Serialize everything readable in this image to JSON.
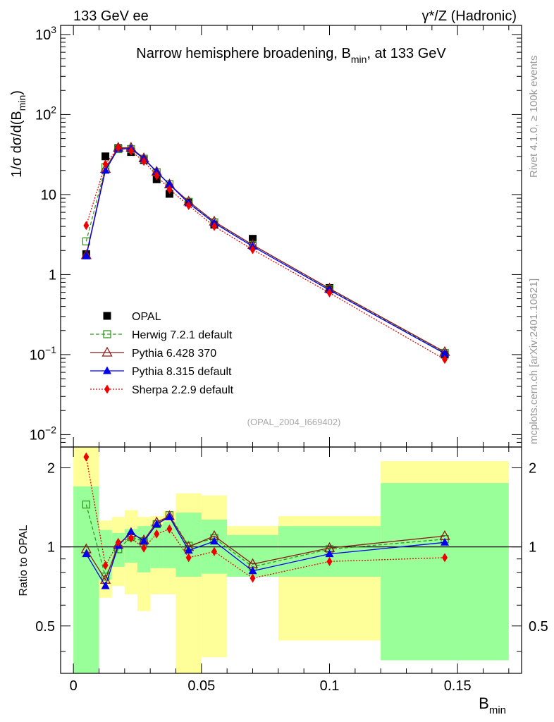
{
  "chart_data": [
    {
      "type": "line",
      "panel": "main",
      "header_left": "133 GeV ee",
      "header_right": "γ*/Z (Hadronic)",
      "title_main": "Narrow hemisphere broadening, B",
      "title_sub": "min",
      "title_tail": ", at 133 GeV",
      "ylabel_prefix": "1/σ  dσ/d(B",
      "ylabel_sub": "min",
      "ylabel_suffix": ")",
      "yscale": "log",
      "ylim": [
        0.007,
        1300
      ],
      "xlim": [
        -0.005,
        0.175
      ],
      "yticks": [
        {
          "value": 1000,
          "base": "10",
          "exp": "3"
        },
        {
          "value": 100,
          "base": "10",
          "exp": "2"
        },
        {
          "value": 10,
          "base": "10",
          "exp": ""
        },
        {
          "value": 1,
          "base": "1",
          "exp": ""
        },
        {
          "value": 0.1,
          "base": "10",
          "exp": "−1"
        },
        {
          "value": 0.01,
          "base": "10",
          "exp": "−2"
        }
      ],
      "watermark": "(OPAL_2004_I669402)",
      "x": [
        0.005,
        0.0125,
        0.0175,
        0.0225,
        0.0275,
        0.0325,
        0.0375,
        0.045,
        0.055,
        0.07,
        0.1,
        0.145
      ],
      "series": [
        {
          "name": "OPAL",
          "style": "data",
          "marker": "square-filled",
          "color": "#000000",
          "values": [
            1.8,
            30,
            38,
            34,
            27,
            15.5,
            10.2,
            8,
            4.2,
            2.8,
            0.68,
            0.1
          ]
        },
        {
          "name": "Herwig 7.2.1 default",
          "style": "dashed",
          "marker": "square-open",
          "color": "#339922",
          "values": [
            2.6,
            22,
            37,
            37,
            28,
            19,
            13.5,
            8.1,
            4.5,
            2.35,
            0.66,
            0.105
          ]
        },
        {
          "name": "Pythia 6.428 370",
          "style": "solid",
          "marker": "triangle-open",
          "color": "#8b1a1a",
          "values": [
            1.75,
            21,
            38.5,
            38.5,
            28.5,
            19.3,
            13.4,
            8.2,
            4.6,
            2.35,
            0.67,
            0.108
          ]
        },
        {
          "name": "Pythia 8.315 default",
          "style": "solid",
          "marker": "triangle-filled",
          "color": "#0000ee",
          "values": [
            1.7,
            20,
            37.5,
            37.5,
            28,
            19.3,
            13.4,
            7.8,
            4.4,
            2.25,
            0.64,
            0.103
          ]
        },
        {
          "name": "Sherpa 2.2.9 default",
          "style": "dotted",
          "marker": "diamond-filled",
          "color": "#ee0000",
          "values": [
            4.1,
            24,
            38.5,
            35,
            26,
            17.3,
            11.6,
            7.3,
            4,
            2.05,
            0.59,
            0.087
          ]
        }
      ]
    },
    {
      "type": "line",
      "panel": "ratio",
      "ylabel": "Ratio to OPAL",
      "xlabel": "B",
      "xlabel_sub": "min",
      "yscale": "log",
      "ylim": [
        0.33,
        2.4
      ],
      "ytick_labels": [
        "2",
        "1",
        "0.5"
      ],
      "ytick_values": [
        2,
        1,
        0.5
      ],
      "xtick_labels": [
        "0",
        "0.05",
        "0.1",
        "0.15"
      ],
      "xtick_values": [
        0,
        0.05,
        0.1,
        0.15
      ],
      "uncertainty_bins": [
        {
          "x0": 0.0,
          "x1": 0.01,
          "inner": [
            0.33,
            1.7
          ],
          "outer": [
            0.33,
            2.4
          ]
        },
        {
          "x0": 0.01,
          "x1": 0.015,
          "inner": [
            0.75,
            1.16
          ],
          "outer": [
            0.64,
            1.26
          ]
        },
        {
          "x0": 0.015,
          "x1": 0.02,
          "inner": [
            0.84,
            1.13
          ],
          "outer": [
            0.71,
            1.3
          ]
        },
        {
          "x0": 0.02,
          "x1": 0.025,
          "inner": [
            0.87,
            1.17
          ],
          "outer": [
            0.66,
            1.38
          ]
        },
        {
          "x0": 0.025,
          "x1": 0.03,
          "inner": [
            0.8,
            1.2
          ],
          "outer": [
            0.57,
            1.3
          ]
        },
        {
          "x0": 0.03,
          "x1": 0.035,
          "inner": [
            0.83,
            1.22
          ],
          "outer": [
            0.66,
            1.31
          ]
        },
        {
          "x0": 0.035,
          "x1": 0.04,
          "inner": [
            0.83,
            1.25
          ],
          "outer": [
            0.66,
            1.37
          ]
        },
        {
          "x0": 0.04,
          "x1": 0.05,
          "inner": [
            0.77,
            1.35
          ],
          "outer": [
            0.33,
            1.6
          ]
        },
        {
          "x0": 0.05,
          "x1": 0.06,
          "inner": [
            0.79,
            1.27
          ],
          "outer": [
            0.38,
            1.57
          ]
        },
        {
          "x0": 0.06,
          "x1": 0.08,
          "inner": [
            0.77,
            1.11
          ],
          "outer": [
            0.77,
            1.2
          ]
        },
        {
          "x0": 0.08,
          "x1": 0.12,
          "inner": [
            0.77,
            1.2
          ],
          "outer": [
            0.44,
            1.31
          ]
        },
        {
          "x0": 0.12,
          "x1": 0.17,
          "inner": [
            0.37,
            1.75
          ],
          "outer": [
            0.37,
            2.12
          ]
        }
      ],
      "series": [
        {
          "name": "Herwig 7.2.1 default",
          "values": [
            1.45,
            0.77,
            0.98,
            1.09,
            1.05,
            1.22,
            1.32,
            1.01,
            1.08,
            0.84,
            0.98,
            1.07
          ]
        },
        {
          "name": "Pythia 6.428 370",
          "values": [
            0.98,
            0.75,
            1.02,
            1.13,
            1.06,
            1.24,
            1.31,
            1.0,
            1.1,
            0.86,
            0.99,
            1.1
          ]
        },
        {
          "name": "Pythia 8.315 default",
          "values": [
            0.94,
            0.71,
            1.01,
            1.14,
            1.05,
            1.22,
            1.3,
            0.97,
            1.05,
            0.81,
            0.94,
            1.04
          ]
        },
        {
          "name": "Sherpa 2.2.9 default",
          "values": [
            2.2,
            0.85,
            1.04,
            1.08,
            0.99,
            1.12,
            1.17,
            0.91,
            0.96,
            0.76,
            0.88,
            0.91
          ]
        }
      ]
    }
  ],
  "side_label_top": "Rivet 4.1.0, ≥ 100k events",
  "side_label_bottom": "mcplots.cern.ch [arXiv:2401.10621]"
}
